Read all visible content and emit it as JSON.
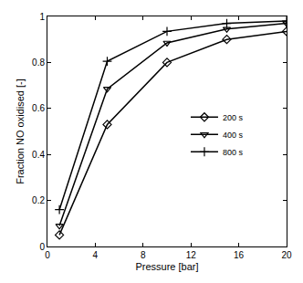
{
  "chart_data": {
    "type": "line",
    "x_label": "Pressure [bar]",
    "y_label": "Fraction NO oxidised [-]",
    "x": [
      1,
      5,
      10,
      15,
      20
    ],
    "series": [
      {
        "name": "200 s",
        "color": "#000000",
        "marker": "diamond",
        "values": [
          0.05,
          0.53,
          0.8,
          0.9,
          0.935
        ]
      },
      {
        "name": "400 s",
        "color": "#000000",
        "marker": "triangle-down",
        "values": [
          0.09,
          0.685,
          0.885,
          0.945,
          0.97
        ]
      },
      {
        "name": "800 s",
        "color": "#000000",
        "marker": "plus",
        "values": [
          0.16,
          0.805,
          0.935,
          0.97,
          0.98
        ]
      }
    ],
    "xlim": [
      0,
      20
    ],
    "xticks": [
      0,
      4,
      8,
      12,
      16,
      20
    ],
    "ylim": [
      0,
      1
    ],
    "yticks": [
      0,
      0.2,
      0.4,
      0.6,
      0.8,
      1
    ],
    "grid": false,
    "legend": "right"
  }
}
